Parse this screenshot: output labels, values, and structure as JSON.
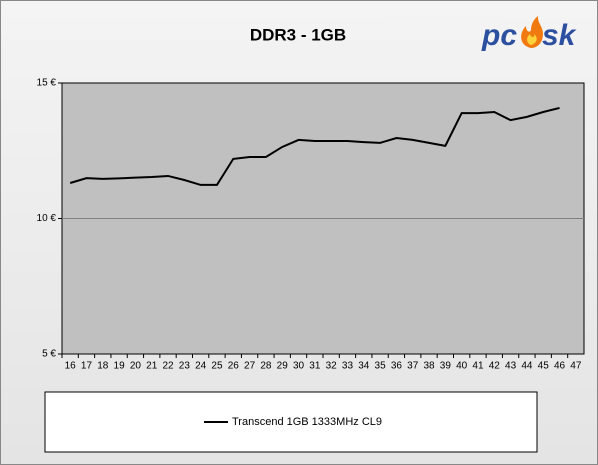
{
  "chart_data": {
    "type": "line",
    "title": "DDR3 - 1GB",
    "logo": [
      "pc",
      "sk"
    ],
    "categories": [
      "16",
      "17",
      "18",
      "19",
      "20",
      "21",
      "22",
      "23",
      "24",
      "25",
      "26",
      "27",
      "28",
      "29",
      "30",
      "31",
      "32",
      "33",
      "34",
      "35",
      "36",
      "37",
      "38",
      "39",
      "40",
      "41",
      "42",
      "43",
      "44",
      "45",
      "46",
      "47"
    ],
    "series": [
      {
        "name": "Transcend 1GB 1333MHz CL9",
        "color": "#000000",
        "values": [
          11.31,
          11.49,
          11.46,
          11.48,
          11.51,
          11.53,
          11.57,
          11.42,
          11.24,
          11.24,
          12.2,
          12.27,
          12.27,
          12.64,
          12.9,
          12.86,
          12.86,
          12.86,
          12.82,
          12.79,
          12.97,
          12.9,
          12.79,
          12.68,
          13.89,
          13.89,
          13.93,
          13.63,
          13.75,
          13.93,
          14.08,
          null
        ]
      }
    ],
    "ylim": [
      5,
      15
    ],
    "yticks": [
      {
        "value": 5,
        "label": "5 €"
      },
      {
        "value": 10,
        "label": "10 €"
      },
      {
        "value": 15,
        "label": "15 €"
      }
    ],
    "grid": true
  }
}
